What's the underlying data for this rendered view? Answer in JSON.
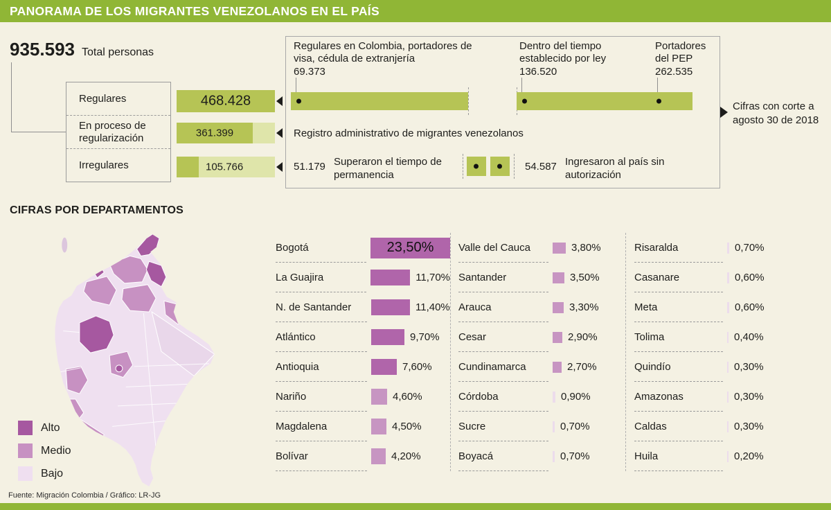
{
  "header": {
    "title": "PANORAMA DE LOS MIGRANTES VENEZOLANOS EN EL PAÍS"
  },
  "overview": {
    "total_value": "935.593",
    "total_label": "Total personas",
    "rows": [
      {
        "label": "Regulares",
        "value": 468428,
        "display": "468.428",
        "text_mode": "center-dark"
      },
      {
        "label": "En proceso de regularización",
        "value": 361399,
        "display": "361.399",
        "text_mode": "center-dark"
      },
      {
        "label": "Irregulares",
        "value": 105766,
        "display": "105.766",
        "text_mode": "after-dark"
      }
    ],
    "cutoff_note": "Cifras con corte a agosto 30 de 2018"
  },
  "regular_detail": {
    "segments": [
      {
        "label": "Regulares en Colombia, portadores de visa, cédula de extranjería",
        "value": "69.373"
      },
      {
        "label": "Dentro del tiempo establecido por ley",
        "value": "136.520"
      },
      {
        "label": "Portadores del PEP",
        "value": "262.535"
      }
    ]
  },
  "process_detail": {
    "label": "Registro administrativo de migrantes venezolanos"
  },
  "irregular_detail": {
    "overstay": {
      "value": "51.179",
      "label": "Superaron el tiempo de permanencia"
    },
    "unauthorized": {
      "value": "54.587",
      "label": "Ingresaron al país sin autorización"
    }
  },
  "departments": {
    "title": "CIFRAS POR DEPARTAMENTOS",
    "legend": [
      {
        "label": "Alto",
        "color": "#a658a0"
      },
      {
        "label": "Medio",
        "color": "#c791c2"
      },
      {
        "label": "Bajo",
        "color": "#efdff0"
      }
    ],
    "colors": {
      "high": "#b065aa",
      "mid": "#c795c2",
      "low": "#ecdcec"
    },
    "columns": [
      {
        "rows": [
          {
            "name": "Bogotá",
            "pct": 23.5,
            "display": "23,50%",
            "value_inside": true
          },
          {
            "name": "La Guajira",
            "pct": 11.7,
            "display": "11,70%"
          },
          {
            "name": "N. de Santander",
            "pct": 11.4,
            "display": "11,40%"
          },
          {
            "name": "Atlántico",
            "pct": 9.7,
            "display": "9,70%"
          },
          {
            "name": "Antioquia",
            "pct": 7.6,
            "display": "7,60%"
          },
          {
            "name": "Nariño",
            "pct": 4.6,
            "display": "4,60%"
          },
          {
            "name": "Magdalena",
            "pct": 4.5,
            "display": "4,50%"
          },
          {
            "name": "Bolívar",
            "pct": 4.2,
            "display": "4,20%"
          }
        ]
      },
      {
        "rows": [
          {
            "name": "Valle del Cauca",
            "pct": 3.8,
            "display": "3,80%"
          },
          {
            "name": "Santander",
            "pct": 3.5,
            "display": "3,50%"
          },
          {
            "name": "Arauca",
            "pct": 3.3,
            "display": "3,30%"
          },
          {
            "name": "Cesar",
            "pct": 2.9,
            "display": "2,90%"
          },
          {
            "name": "Cundinamarca",
            "pct": 2.7,
            "display": "2,70%"
          },
          {
            "name": "Córdoba",
            "pct": 0.9,
            "display": "0,90%"
          },
          {
            "name": "Sucre",
            "pct": 0.7,
            "display": "0,70%"
          },
          {
            "name": "Boyacá",
            "pct": 0.7,
            "display": "0,70%"
          }
        ]
      },
      {
        "rows": [
          {
            "name": "Risaralda",
            "pct": 0.7,
            "display": "0,70%"
          },
          {
            "name": "Casanare",
            "pct": 0.6,
            "display": "0,60%"
          },
          {
            "name": "Meta",
            "pct": 0.6,
            "display": "0,60%"
          },
          {
            "name": "Tolima",
            "pct": 0.4,
            "display": "0,40%"
          },
          {
            "name": "Quindío",
            "pct": 0.3,
            "display": "0,30%"
          },
          {
            "name": "Amazonas",
            "pct": 0.3,
            "display": "0,30%"
          },
          {
            "name": "Caldas",
            "pct": 0.3,
            "display": "0,30%"
          },
          {
            "name": "Huila",
            "pct": 0.2,
            "display": "0,20%"
          }
        ]
      }
    ]
  },
  "footer": {
    "source": "Fuente: Migración Colombia / Gráfico: LR-JG"
  },
  "theme": {
    "green": "#90b636",
    "olive": "#b6c455",
    "olive_light": "#dfe5aa",
    "purple": "#b065aa"
  },
  "chart_data": [
    {
      "type": "bar",
      "title": "Panorama de los migrantes venezolanos en el país",
      "categories": [
        "Regulares",
        "En proceso de regularización",
        "Irregulares"
      ],
      "values": [
        468428,
        361399,
        105766
      ],
      "total": 935593,
      "annotations": {
        "Regulares": [
          {
            "label": "Regulares en Colombia, portadores de visa, cédula de extranjería",
            "value": 69373
          },
          {
            "label": "Dentro del tiempo establecido por ley",
            "value": 136520
          },
          {
            "label": "Portadores del PEP",
            "value": 262535
          }
        ],
        "En proceso de regularización": [
          {
            "label": "Registro administrativo de migrantes venezolanos"
          }
        ],
        "Irregulares": [
          {
            "label": "Superaron el tiempo de permanencia",
            "value": 51179
          },
          {
            "label": "Ingresaron al país sin autorización",
            "value": 54587
          }
        ]
      },
      "note": "Cifras con corte a agosto 30 de 2018"
    },
    {
      "type": "bar",
      "title": "Cifras por departamentos",
      "unit": "%",
      "categories": [
        "Bogotá",
        "La Guajira",
        "N. de Santander",
        "Atlántico",
        "Antioquia",
        "Nariño",
        "Magdalena",
        "Bolívar",
        "Valle del Cauca",
        "Santander",
        "Arauca",
        "Cesar",
        "Cundinamarca",
        "Córdoba",
        "Sucre",
        "Boyacá",
        "Risaralda",
        "Casanare",
        "Meta",
        "Tolima",
        "Quindío",
        "Amazonas",
        "Caldas",
        "Huila"
      ],
      "values": [
        23.5,
        11.7,
        11.4,
        9.7,
        7.6,
        4.6,
        4.5,
        4.2,
        3.8,
        3.5,
        3.3,
        2.9,
        2.7,
        0.9,
        0.7,
        0.7,
        0.7,
        0.6,
        0.6,
        0.4,
        0.3,
        0.3,
        0.3,
        0.2
      ],
      "legend_levels": [
        "Alto",
        "Medio",
        "Bajo"
      ]
    }
  ]
}
